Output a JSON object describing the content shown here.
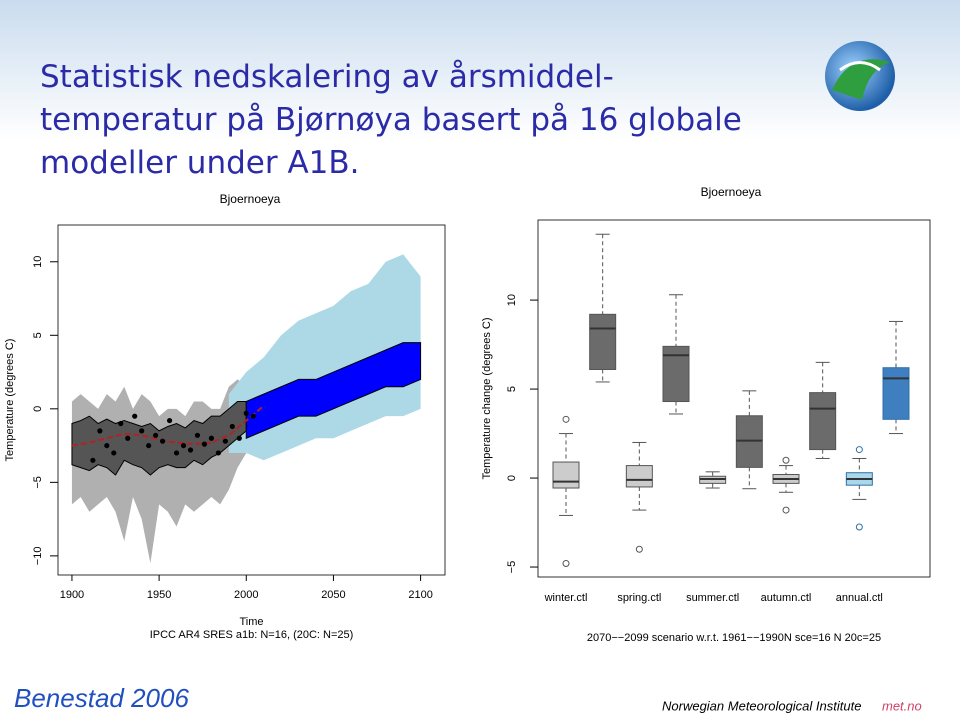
{
  "title_lines": [
    "Statistisk nedskalering av årsmiddel-",
    "temperatur på Bjørnøya basert på 16 globale",
    "modeller under A1B."
  ],
  "footer": {
    "author": "Benestad 2006",
    "institute": "Norwegian Meteorological Institute",
    "site": "met.no"
  },
  "chart_data": [
    {
      "type": "line",
      "title": "Bjoernoeya",
      "xlabel": "Time",
      "caption": "IPCC AR4 SRES a1b: N=16, (20C: N=25)",
      "ylabel": "Temperature (degrees C)",
      "xlim": [
        1892,
        2114
      ],
      "ylim": [
        -11.3,
        12.5
      ],
      "xticks": [
        1900,
        1950,
        2000,
        2050,
        2100
      ],
      "yticks": [
        {
          "value": -10,
          "label": "−10"
        },
        {
          "value": -5,
          "label": "−5"
        },
        0,
        5,
        10
      ],
      "series": [
        {
          "kind": "band",
          "color": "#b0b0b0",
          "x": [
            1900,
            1905,
            1910,
            1915,
            1920,
            1925,
            1930,
            1935,
            1940,
            1945,
            1950,
            1955,
            1960,
            1965,
            1970,
            1975,
            1980,
            1985,
            1990,
            1995,
            2000
          ],
          "lower": [
            -6.5,
            -6,
            -7,
            -6.5,
            -6,
            -7,
            -9,
            -6,
            -7.5,
            -10.5,
            -6.5,
            -7,
            -8,
            -6.5,
            -7,
            -6.5,
            -6,
            -6.5,
            -5.5,
            -4,
            -3
          ],
          "upper": [
            0.5,
            1,
            0.5,
            0,
            1,
            0.5,
            1.5,
            0,
            1,
            0.5,
            -0.5,
            0,
            0,
            -0.5,
            0.5,
            0.5,
            0,
            0,
            1.5,
            2,
            1.5
          ]
        },
        {
          "kind": "band",
          "color": "#add8e6",
          "x": [
            1990,
            2000,
            2010,
            2020,
            2030,
            2040,
            2050,
            2060,
            2070,
            2080,
            2090,
            2100
          ],
          "lower": [
            -3,
            -3,
            -3.5,
            -3,
            -2.5,
            -2,
            -2,
            -1.5,
            -1,
            -0.5,
            -0.5,
            0
          ],
          "upper": [
            1,
            2.5,
            3.5,
            5,
            6,
            6.5,
            7,
            8,
            8.5,
            10,
            10.5,
            9
          ]
        },
        {
          "kind": "band",
          "color": "#555555",
          "x": [
            1900,
            1905,
            1910,
            1915,
            1920,
            1925,
            1930,
            1935,
            1940,
            1945,
            1950,
            1955,
            1960,
            1965,
            1970,
            1975,
            1980,
            1985,
            1990,
            1995,
            2000
          ],
          "lower": [
            -3.8,
            -4,
            -4.2,
            -3.8,
            -4,
            -4.5,
            -3.5,
            -3.8,
            -4,
            -4.5,
            -4,
            -3.8,
            -4,
            -4,
            -3.5,
            -3.8,
            -3.3,
            -3,
            -2.5,
            -2,
            -1.5
          ],
          "upper": [
            -1,
            -0.8,
            -0.5,
            -1,
            -0.7,
            -1,
            -0.8,
            -1,
            -1.2,
            -1,
            -1.5,
            -1.2,
            -1,
            -1.3,
            -0.8,
            -1,
            -0.5,
            -0.5,
            0,
            0.5,
            0.5
          ]
        },
        {
          "kind": "band",
          "color": "#0000ff",
          "x": [
            2000,
            2010,
            2020,
            2030,
            2040,
            2050,
            2060,
            2070,
            2080,
            2090,
            2100
          ],
          "lower": [
            -2,
            -1.5,
            -1,
            -0.5,
            -0.5,
            0,
            0.5,
            1,
            1.5,
            1.5,
            2
          ],
          "upper": [
            0.5,
            1,
            1.5,
            2,
            2,
            2.5,
            3,
            3.5,
            4,
            4.5,
            4.5
          ]
        },
        {
          "kind": "line",
          "color": "#b22222",
          "x": [
            1900,
            1910,
            1920,
            1930,
            1940,
            1950,
            1960,
            1970,
            1980,
            1990,
            2000,
            2010
          ],
          "values": [
            -2.5,
            -2.3,
            -2.0,
            -1.7,
            -1.8,
            -2.1,
            -2.3,
            -2.4,
            -2.3,
            -1.8,
            -0.8,
            0.2
          ]
        },
        {
          "kind": "scatter",
          "color": "#000000",
          "x": [
            1912,
            1916,
            1920,
            1924,
            1928,
            1932,
            1936,
            1940,
            1944,
            1948,
            1952,
            1956,
            1960,
            1964,
            1968,
            1972,
            1976,
            1980,
            1984,
            1988,
            1992,
            1996,
            2000,
            2004
          ],
          "values": [
            -3.5,
            -1.5,
            -2.5,
            -3,
            -1,
            -2,
            -0.5,
            -1.5,
            -2.5,
            -1.8,
            -2.2,
            -0.8,
            -3,
            -2.5,
            -2.8,
            -1.8,
            -2.4,
            -2,
            -3,
            -2.2,
            -1.2,
            -2,
            -0.3,
            -0.5
          ]
        }
      ]
    },
    {
      "type": "box",
      "title": "Bjoernoeya",
      "caption": "2070−−2099 scenario w.r.t. 1961−−1990N sce=16 N 20c=25",
      "ylabel": "Temperature change (degrees C)",
      "ylim": [
        -5.56,
        14.5
      ],
      "yticks": [
        {
          "value": -5,
          "label": "−5"
        },
        0,
        5,
        10
      ],
      "categories": [
        "winter.ctl",
        null,
        "spring.ctl",
        null,
        "summer.ctl",
        null,
        "autumn.ctl",
        null,
        "annual.ctl",
        null
      ],
      "boxes": [
        {
          "min": -2.1,
          "q1": -0.56,
          "median": -0.2,
          "q3": 0.9,
          "max": 2.5,
          "outliers": [
            3.3,
            -4.8
          ],
          "color": "#cccccc"
        },
        {
          "min": 5.4,
          "q1": 6.1,
          "median": 8.4,
          "q3": 9.2,
          "max": 13.7,
          "outliers": [],
          "color": "#6b6b6b"
        },
        {
          "min": -1.8,
          "q1": -0.5,
          "median": -0.1,
          "q3": 0.7,
          "max": 2.0,
          "outliers": [
            -4.0
          ],
          "color": "#cccccc"
        },
        {
          "min": 3.6,
          "q1": 4.3,
          "median": 6.9,
          "q3": 7.4,
          "max": 10.3,
          "outliers": [],
          "color": "#6b6b6b"
        },
        {
          "min": -0.56,
          "q1": -0.3,
          "median": -0.05,
          "q3": 0.1,
          "max": 0.35,
          "outliers": [],
          "color": "#cccccc"
        },
        {
          "min": -0.6,
          "q1": 0.6,
          "median": 2.1,
          "q3": 3.5,
          "max": 4.9,
          "outliers": [],
          "color": "#6b6b6b"
        },
        {
          "min": -0.8,
          "q1": -0.3,
          "median": -0.05,
          "q3": 0.2,
          "max": 0.7,
          "outliers": [
            1.0,
            -1.8
          ],
          "color": "#cccccc"
        },
        {
          "min": 1.1,
          "q1": 1.6,
          "median": 3.9,
          "q3": 4.8,
          "max": 6.5,
          "outliers": [],
          "color": "#6b6b6b"
        },
        {
          "min": -1.2,
          "q1": -0.4,
          "median": -0.05,
          "q3": 0.3,
          "max": 1.1,
          "outliers": [
            1.6,
            -2.75
          ],
          "color": "#a8d8ea"
        },
        {
          "min": 2.5,
          "q1": 3.3,
          "median": 5.6,
          "q3": 6.2,
          "max": 8.8,
          "outliers": [],
          "color": "#3f7fbf"
        }
      ]
    }
  ]
}
